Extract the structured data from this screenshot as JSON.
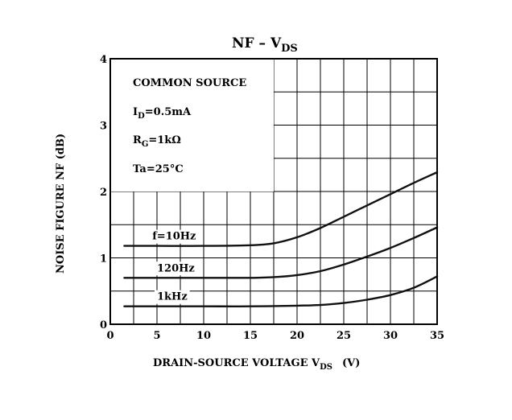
{
  "chart_data": {
    "type": "line",
    "title": "NF – V",
    "title_sub": "DS",
    "xlabel": "DRAIN-SOURCE VOLTAGE  V",
    "xlabel_sub": "DS",
    "xlabel_unit": "(V)",
    "ylabel": "NOISE FIGURE  NF  (dB)",
    "xlim": [
      0,
      35
    ],
    "ylim": [
      0,
      4
    ],
    "x_ticks": [
      "0",
      "5",
      "10",
      "15",
      "20",
      "25",
      "30",
      "35"
    ],
    "y_ticks": [
      "0",
      "1",
      "2",
      "3",
      "4"
    ],
    "grid": true,
    "conditions": {
      "line1": "COMMON SOURCE",
      "line2_main": "I",
      "line2_sub": "D",
      "line2_rest": "=0.5mA",
      "line3_main": "R",
      "line3_sub": "G",
      "line3_rest": "=1kΩ",
      "line4": "Ta=25°C"
    },
    "series": [
      {
        "name": "f=10Hz",
        "x": [
          1.5,
          5,
          10,
          15,
          17.5,
          20,
          22.5,
          25,
          27.5,
          30,
          32.5,
          35
        ],
        "y": [
          1.18,
          1.18,
          1.18,
          1.19,
          1.22,
          1.31,
          1.45,
          1.62,
          1.79,
          1.96,
          2.13,
          2.29
        ]
      },
      {
        "name": "120Hz",
        "x": [
          1.5,
          5,
          10,
          15,
          17.5,
          20,
          22.5,
          25,
          27.5,
          30,
          32.5,
          35
        ],
        "y": [
          0.7,
          0.7,
          0.7,
          0.7,
          0.71,
          0.74,
          0.8,
          0.9,
          1.02,
          1.15,
          1.3,
          1.46
        ]
      },
      {
        "name": "1kHz",
        "x": [
          1.5,
          5,
          10,
          15,
          20,
          22.5,
          25,
          27.5,
          30,
          32.5,
          35
        ],
        "y": [
          0.27,
          0.27,
          0.27,
          0.27,
          0.28,
          0.29,
          0.32,
          0.37,
          0.44,
          0.55,
          0.72
        ]
      }
    ]
  }
}
